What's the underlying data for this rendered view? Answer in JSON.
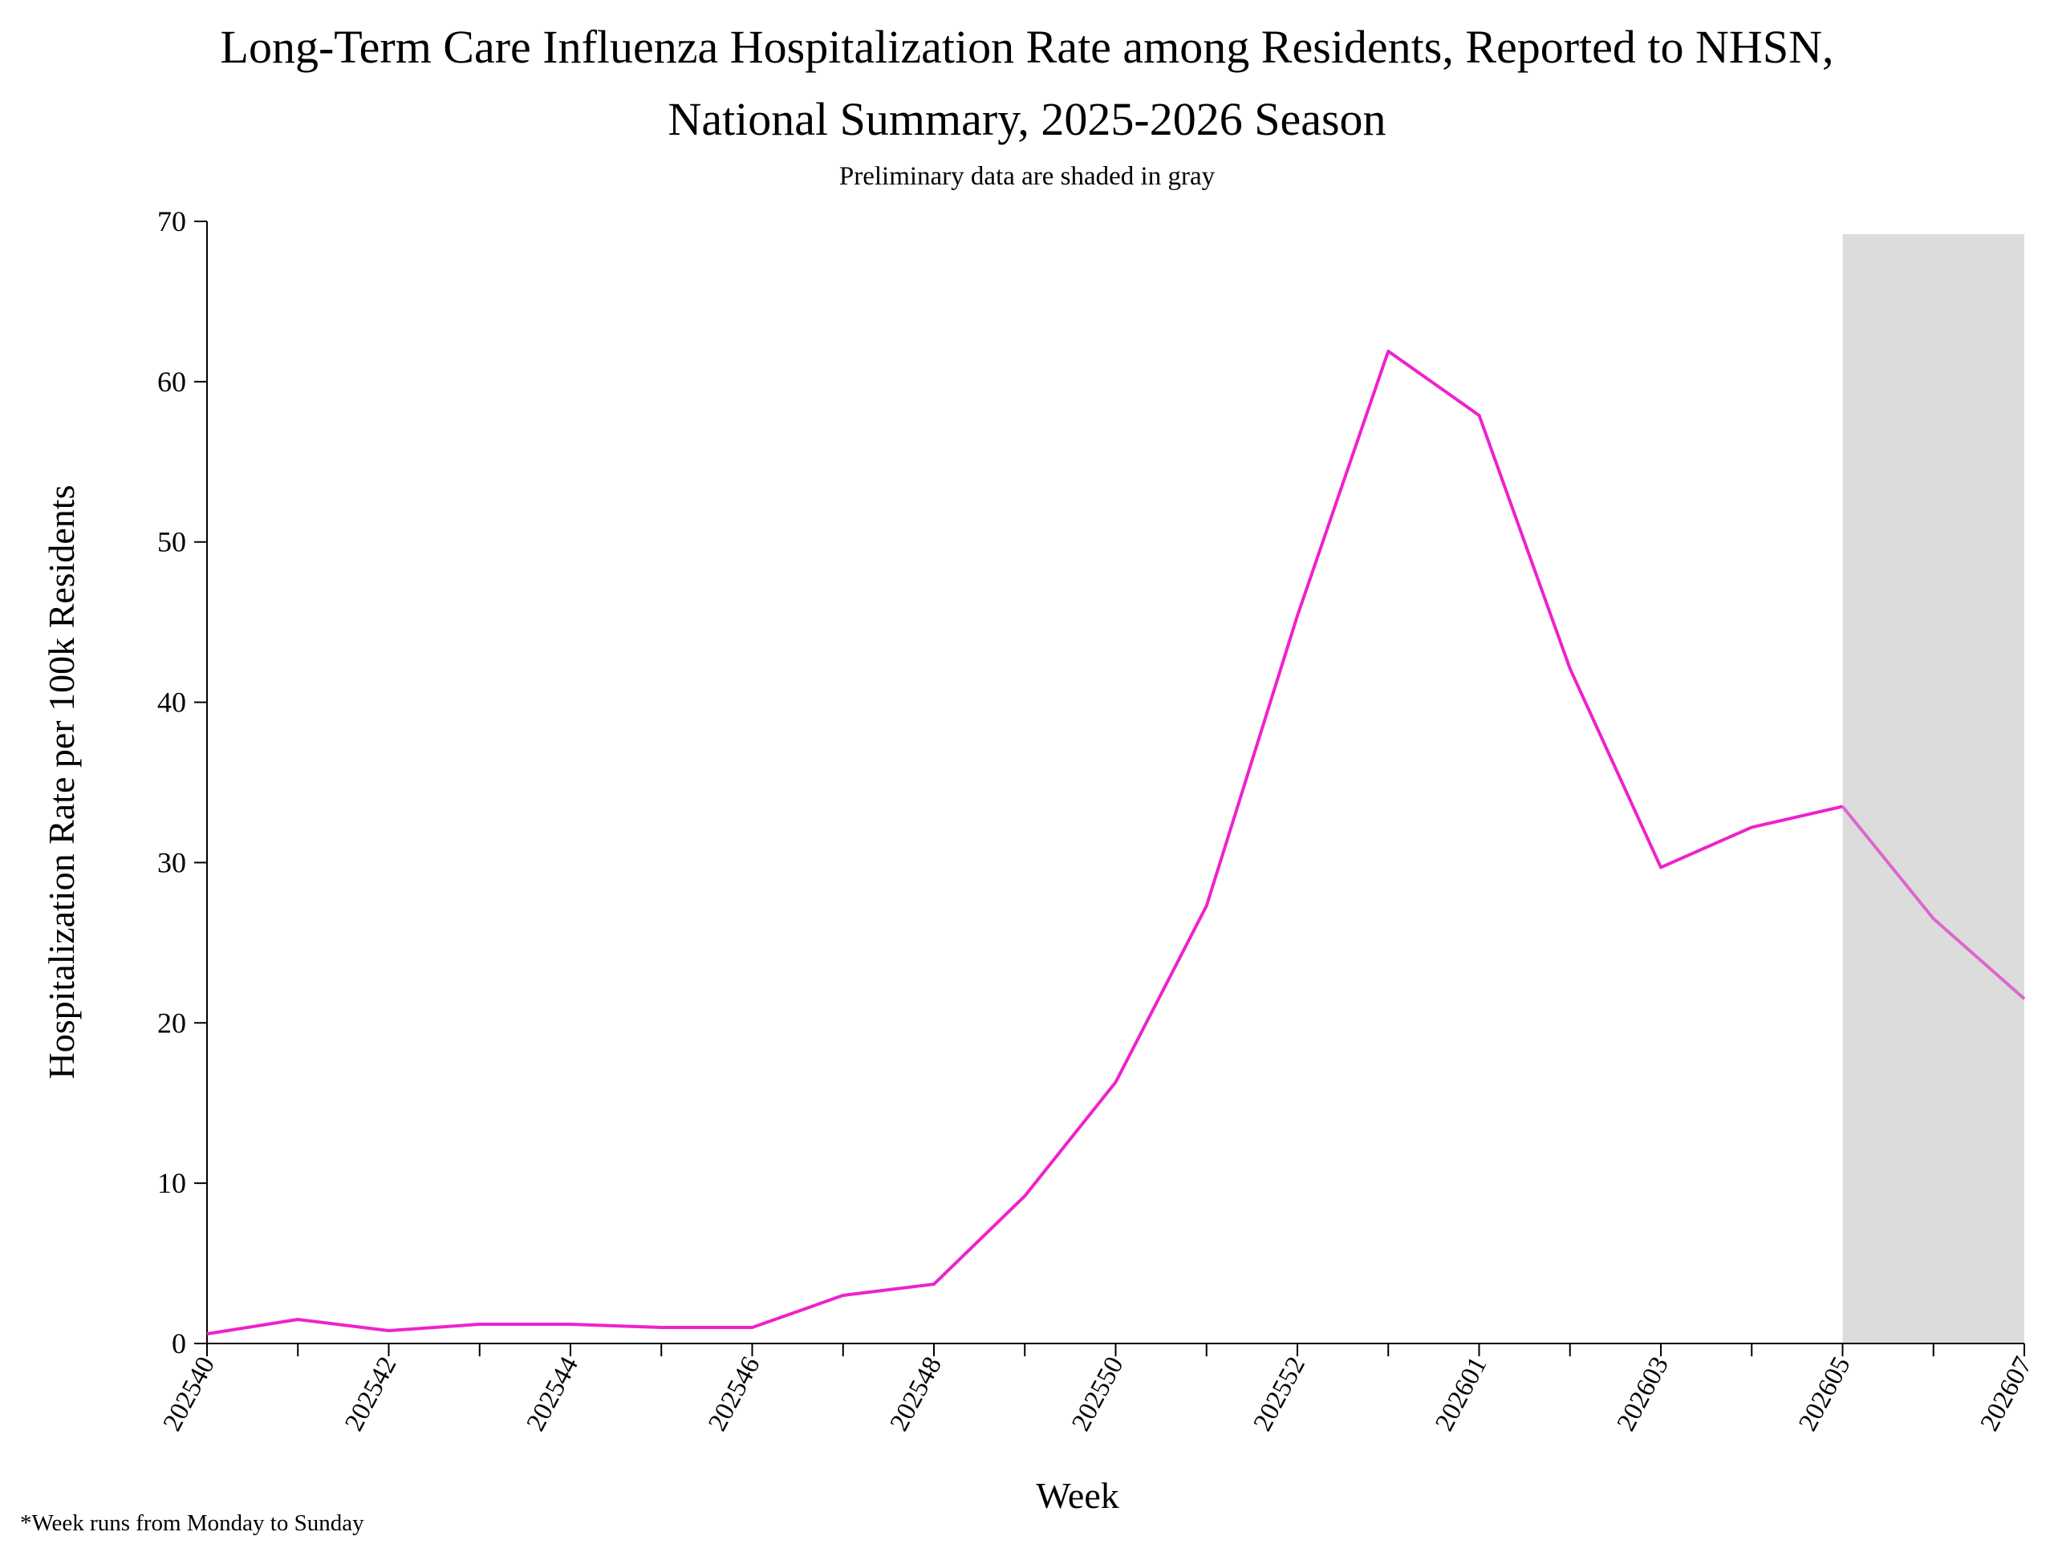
{
  "chart_data": {
    "type": "line",
    "title": [
      "Long-Term Care Influenza Hospitalization Rate among Residents, Reported to NHSN,",
      "National Summary, 2025-2026 Season"
    ],
    "subtitle": "Preliminary data are shaded in gray",
    "x_label": "Week",
    "y_label": "Hospitalization Rate per 100k Residents",
    "footnote": "*Week runs from Monday to Sunday",
    "categories": [
      "202540",
      null,
      "202542",
      null,
      "202544",
      null,
      "202546",
      null,
      "202548",
      null,
      "202550",
      null,
      "202552",
      null,
      "202601",
      null,
      "202603",
      null,
      "202605",
      null,
      "202607"
    ],
    "series": [
      {
        "color": "#ee22cc",
        "preliminary_color": "#dd66cc",
        "values": [
          0.6,
          1.5,
          0.8,
          1.2,
          1.2,
          1.0,
          1.0,
          3.0,
          3.7,
          9.2,
          16.3,
          27.3,
          45.4,
          61.9,
          57.9,
          42.1,
          29.7,
          32.2,
          33.5,
          26.5,
          21.5
        ]
      }
    ],
    "preliminary_from": 18,
    "shade_color": "#dcdcdc",
    "ylim": [
      0,
      70
    ],
    "yticks": [
      0,
      10,
      20,
      30,
      40,
      50,
      60,
      70
    ]
  }
}
